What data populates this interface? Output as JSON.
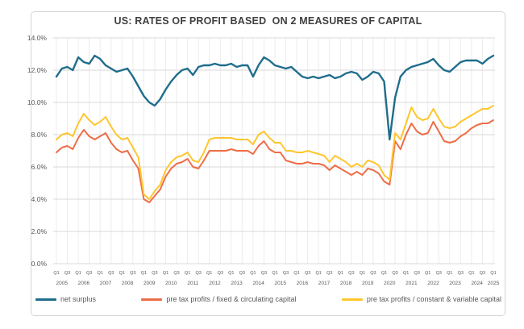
{
  "title": "US: RATES OF PROFIT BASED  ON 2 MEASURES OF CAPITAL",
  "colors": {
    "net_surplus": "#1f6d8c",
    "fixed_circulating": "#ed6d47",
    "constant_variable": "#fec62e",
    "grid_horizontal": "#d9d9d9",
    "grid_vertical": "#ececec",
    "axis_text": "#595959",
    "title_text": "#3f3f3f",
    "box_border": "#d4d4d4"
  },
  "legend": {
    "position": "bottom",
    "items": [
      {
        "label": "net surplus",
        "color": "#1f6d8c"
      },
      {
        "label": "pre tax profits / fixed & circulating capital",
        "color": "#ed6d47"
      },
      {
        "label": "pre tax profits / constant & variable capital",
        "color": "#fec62e"
      }
    ]
  },
  "chart_data": {
    "type": "line",
    "title": "US: RATES OF PROFIT BASED  ON 2 MEASURES OF CAPITAL",
    "xlabel": "",
    "ylabel": "",
    "ylim": [
      0,
      14
    ],
    "y_tick_step": 2,
    "y_tick_labels": [
      "0.0%",
      "2.0%",
      "4.0%",
      "6.0%",
      "8.0%",
      "10.0%",
      "12.0%",
      "14.0%"
    ],
    "x_start": "2005 Q1",
    "x_end": "2025 Q1",
    "x_points": 81,
    "x_tick_every_quarters": 2,
    "x_tick_labels": [
      "Q1",
      "Q3",
      "Q1",
      "Q3",
      "Q1",
      "Q3",
      "Q1",
      "Q3",
      "Q1",
      "Q3",
      "Q1",
      "Q3",
      "Q1",
      "Q3",
      "Q1",
      "Q3",
      "Q1",
      "Q3",
      "Q1",
      "Q3",
      "Q1",
      "Q3",
      "Q1",
      "Q3",
      "Q1",
      "Q3",
      "Q1",
      "Q3",
      "Q1",
      "Q3",
      "Q1",
      "Q3",
      "Q1",
      "Q3",
      "Q1",
      "Q3",
      "Q1",
      "Q3",
      "Q1",
      "Q3",
      "Q1"
    ],
    "year_labels": [
      "2005",
      "2006",
      "2007",
      "2008",
      "2009",
      "2010",
      "2011",
      "2012",
      "2013",
      "2014",
      "2015",
      "2016",
      "2017",
      "2018",
      "2019",
      "2020",
      "2021",
      "2022",
      "2023",
      "2024",
      "2025"
    ],
    "grid": true,
    "legend_position": "bottom",
    "series": [
      {
        "name": "net surplus",
        "color": "#1f6d8c",
        "values": [
          11.6,
          12.1,
          12.2,
          12.0,
          12.8,
          12.5,
          12.4,
          12.9,
          12.7,
          12.3,
          12.1,
          11.9,
          12.0,
          12.1,
          11.6,
          11.0,
          10.4,
          10.0,
          9.8,
          10.2,
          10.8,
          11.3,
          11.7,
          12.0,
          12.1,
          11.7,
          12.2,
          12.3,
          12.3,
          12.4,
          12.3,
          12.3,
          12.4,
          12.2,
          12.3,
          12.3,
          11.6,
          12.3,
          12.8,
          12.6,
          12.3,
          12.2,
          12.1,
          12.2,
          11.9,
          11.6,
          11.5,
          11.6,
          11.5,
          11.6,
          11.7,
          11.5,
          11.6,
          11.8,
          11.9,
          11.8,
          11.4,
          11.6,
          11.9,
          11.8,
          11.3,
          7.7,
          10.3,
          11.6,
          12.0,
          12.2,
          12.3,
          12.4,
          12.5,
          12.7,
          12.3,
          12.0,
          11.9,
          12.2,
          12.5,
          12.6,
          12.6,
          12.6,
          12.4,
          12.7,
          12.9
        ]
      },
      {
        "name": "pre tax profits / fixed & circulating capital",
        "color": "#ed6d47",
        "values": [
          6.9,
          7.2,
          7.3,
          7.1,
          7.8,
          8.3,
          7.9,
          7.7,
          7.9,
          8.1,
          7.5,
          7.1,
          6.9,
          7.0,
          6.4,
          5.9,
          4.0,
          3.8,
          4.2,
          4.6,
          5.4,
          5.9,
          6.2,
          6.3,
          6.5,
          6.0,
          5.9,
          6.4,
          7.0,
          7.0,
          7.0,
          7.0,
          7.1,
          7.0,
          7.0,
          7.0,
          6.8,
          7.3,
          7.6,
          7.1,
          6.9,
          6.9,
          6.4,
          6.3,
          6.2,
          6.2,
          6.3,
          6.2,
          6.2,
          6.1,
          5.8,
          6.1,
          5.9,
          5.7,
          5.5,
          5.7,
          5.5,
          5.9,
          5.8,
          5.6,
          5.1,
          4.9,
          7.6,
          7.1,
          8.0,
          8.7,
          8.2,
          8.0,
          8.1,
          8.8,
          8.2,
          7.6,
          7.5,
          7.6,
          7.9,
          8.1,
          8.4,
          8.6,
          8.7,
          8.7,
          8.9
        ]
      },
      {
        "name": "pre tax profits / constant & variable capital",
        "color": "#fec62e",
        "values": [
          7.7,
          8.0,
          8.1,
          7.9,
          8.7,
          9.3,
          8.9,
          8.6,
          8.8,
          9.1,
          8.5,
          8.0,
          7.7,
          7.8,
          7.2,
          6.6,
          4.3,
          4.0,
          4.5,
          4.9,
          5.8,
          6.3,
          6.6,
          6.7,
          6.9,
          6.4,
          6.3,
          6.9,
          7.7,
          7.8,
          7.8,
          7.8,
          7.8,
          7.7,
          7.7,
          7.7,
          7.4,
          8.0,
          8.2,
          7.8,
          7.5,
          7.5,
          7.0,
          7.0,
          6.9,
          6.9,
          7.0,
          6.9,
          6.8,
          6.7,
          6.3,
          6.7,
          6.5,
          6.3,
          6.0,
          6.2,
          6.0,
          6.4,
          6.3,
          6.1,
          5.5,
          5.2,
          8.1,
          7.7,
          8.7,
          9.7,
          9.1,
          8.9,
          9.0,
          9.6,
          9.0,
          8.5,
          8.4,
          8.5,
          8.8,
          9.0,
          9.2,
          9.4,
          9.6,
          9.6,
          9.8
        ]
      }
    ]
  }
}
